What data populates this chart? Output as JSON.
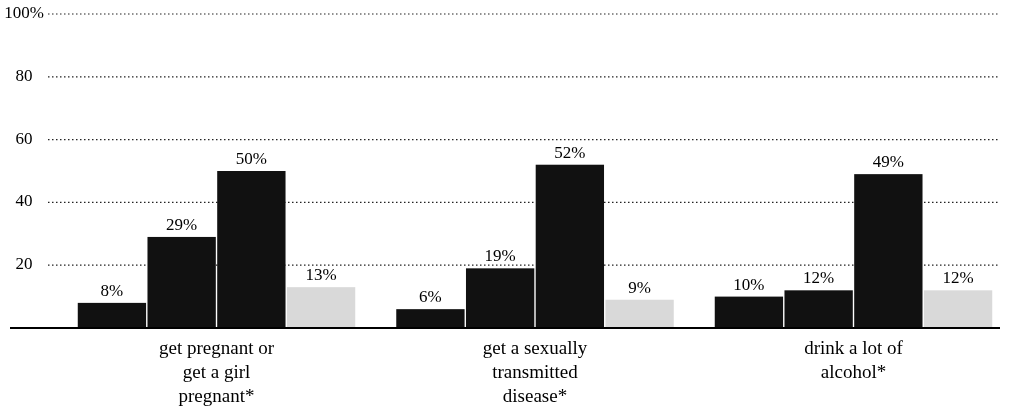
{
  "chart_data": {
    "type": "bar",
    "categories": [
      "get pregnant or get a girl pregnant*",
      "get a sexually transmitted disease*",
      "drink a lot of alcohol*"
    ],
    "series": [
      {
        "color": "#111111",
        "values": [
          8,
          6,
          10
        ],
        "value_labels": [
          "8%",
          "6%",
          "10%"
        ]
      },
      {
        "color": "#111111",
        "values": [
          29,
          19,
          12
        ],
        "value_labels": [
          "29%",
          "19%",
          "12%"
        ]
      },
      {
        "color": "#111111",
        "values": [
          50,
          52,
          49
        ],
        "value_labels": [
          "50%",
          "52%",
          "49%"
        ]
      },
      {
        "color": "#d9d9d9",
        "values": [
          13,
          9,
          12
        ],
        "value_labels": [
          "13%",
          "9%",
          "12%"
        ]
      }
    ],
    "ylim": [
      0,
      100
    ],
    "yticks": [
      {
        "value": 20,
        "label": "20"
      },
      {
        "value": 40,
        "label": "40"
      },
      {
        "value": 60,
        "label": "60"
      },
      {
        "value": 80,
        "label": "80"
      },
      {
        "value": 100,
        "label": "100%"
      }
    ],
    "grid": "y",
    "line_style": "dotted"
  }
}
